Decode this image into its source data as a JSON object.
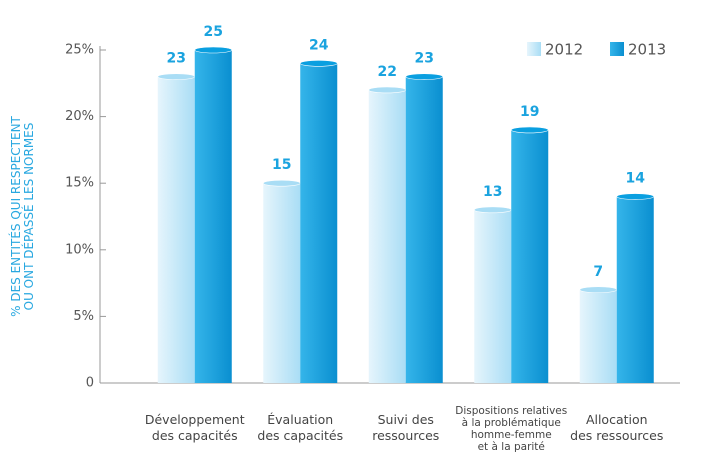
{
  "chart_data": {
    "type": "bar",
    "y_label": [
      "% DES ENTITÉS QUI RESPECTENT",
      "OU ONT DÉPASSÉ LES NORMES"
    ],
    "categories": [
      [
        "Développement",
        "des capacités"
      ],
      [
        "Évaluation",
        "des capacités"
      ],
      [
        "Suivi des",
        "ressources"
      ],
      [
        "Dispositions relatives",
        "à la problématique",
        "homme-femme",
        "et à la parité"
      ],
      [
        "Allocation",
        "des ressources"
      ]
    ],
    "series": [
      {
        "name": "2012",
        "color": "#a9ddf5",
        "values": [
          23,
          15,
          22,
          13,
          7
        ]
      },
      {
        "name": "2013",
        "color": "#0a9fe0",
        "values": [
          25,
          24,
          23,
          19,
          14
        ]
      }
    ],
    "ylim": [
      0,
      25
    ],
    "yticks": [
      0,
      {
        "value": 5,
        "label": "5%"
      },
      {
        "value": 10,
        "label": "10%"
      },
      {
        "value": 15,
        "label": "15%"
      },
      {
        "value": 20,
        "label": "20%"
      },
      {
        "value": 25,
        "label": "25%"
      }
    ],
    "legend": "top-right"
  }
}
